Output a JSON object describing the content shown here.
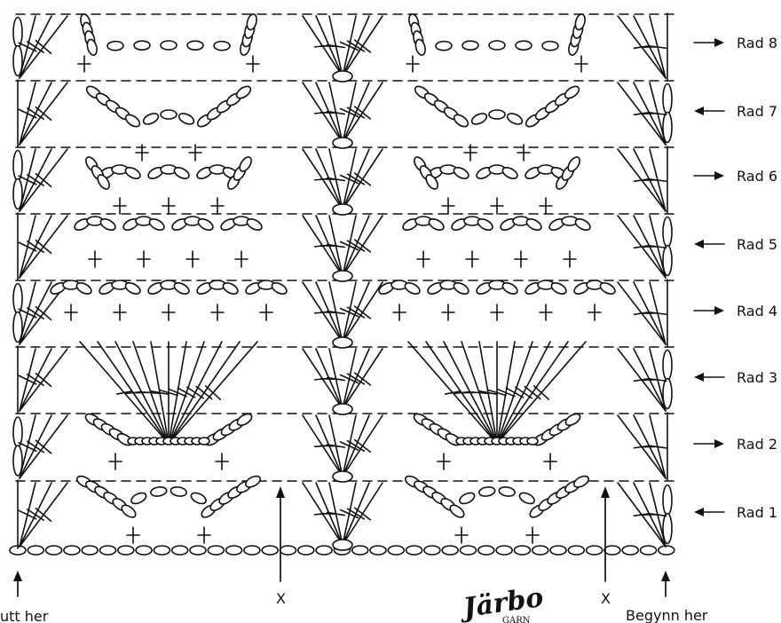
{
  "rows": [
    {
      "label": "Rad 8",
      "direction": "right"
    },
    {
      "label": "Rad 7",
      "direction": "left"
    },
    {
      "label": "Rad 6",
      "direction": "right"
    },
    {
      "label": "Rad 5",
      "direction": "left"
    },
    {
      "label": "Rad 4",
      "direction": "right"
    },
    {
      "label": "Rad 3",
      "direction": "left"
    },
    {
      "label": "Rad 2",
      "direction": "right"
    },
    {
      "label": "Rad 1",
      "direction": "left"
    }
  ],
  "markers": {
    "end_label": "utt her",
    "start_label": "Begynn her",
    "repeat_label": "X"
  },
  "logo": {
    "text": "Järbo",
    "subtext": "GARN"
  }
}
